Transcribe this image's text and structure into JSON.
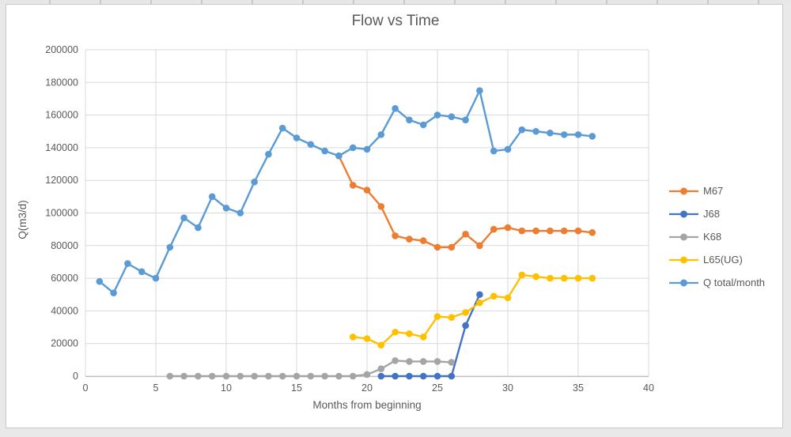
{
  "chart_data": {
    "type": "line",
    "title": "Flow vs Time",
    "xlabel": "Months from beginning",
    "ylabel": "Q(m3/d)",
    "xlim": [
      0,
      40
    ],
    "ylim": [
      0,
      200000
    ],
    "xticks": [
      0,
      5,
      10,
      15,
      20,
      25,
      30,
      35,
      40
    ],
    "yticks": [
      0,
      20000,
      40000,
      60000,
      80000,
      100000,
      120000,
      140000,
      160000,
      180000,
      200000
    ],
    "grid": "both",
    "legend_position": "right",
    "gridline_color": "#d9d9d9",
    "axis_line_color": "#bfbfbf",
    "text_color": "#595959",
    "series": [
      {
        "name": "M67",
        "color": "#ED7D31",
        "x": [
          18,
          19,
          20,
          21,
          22,
          23,
          24,
          25,
          26,
          27,
          28,
          29,
          30,
          31,
          32,
          33,
          34,
          35,
          36
        ],
        "y": [
          135000,
          117000,
          114000,
          104000,
          86000,
          84000,
          83000,
          79000,
          79000,
          87000,
          80000,
          90000,
          91000,
          89000,
          89000,
          89000,
          89000,
          89000,
          88000
        ]
      },
      {
        "name": "J68",
        "color": "#4472C4",
        "x": [
          21,
          22,
          23,
          24,
          25,
          26,
          27,
          28
        ],
        "y": [
          0,
          0,
          0,
          0,
          0,
          0,
          31000,
          50000
        ]
      },
      {
        "name": "K68",
        "color": "#A5A5A5",
        "x": [
          6,
          7,
          8,
          9,
          10,
          11,
          12,
          13,
          14,
          15,
          16,
          17,
          18,
          19,
          20,
          21,
          22,
          23,
          24,
          25,
          26
        ],
        "y": [
          0,
          0,
          0,
          0,
          0,
          0,
          0,
          0,
          0,
          0,
          0,
          0,
          0,
          0,
          1000,
          4500,
          9500,
          9000,
          9000,
          9000,
          8500
        ]
      },
      {
        "name": "L65(UG)",
        "color": "#FFC000",
        "x": [
          19,
          20,
          21,
          22,
          23,
          24,
          25,
          26,
          27,
          28,
          29,
          30,
          31,
          32,
          33,
          34,
          35,
          36
        ],
        "y": [
          24000,
          23000,
          19000,
          27000,
          26000,
          24000,
          36500,
          36000,
          39000,
          45000,
          49000,
          48000,
          62000,
          61000,
          60000,
          60000,
          60000,
          60000
        ]
      },
      {
        "name": "Q total/month",
        "color": "#5B9BD5",
        "x": [
          1,
          2,
          3,
          4,
          5,
          6,
          7,
          8,
          9,
          10,
          11,
          12,
          13,
          14,
          15,
          16,
          17,
          18,
          19,
          20,
          21,
          22,
          23,
          24,
          25,
          26,
          27,
          28,
          29,
          30,
          31,
          32,
          33,
          34,
          35,
          36
        ],
        "y": [
          58000,
          51000,
          69000,
          64000,
          60000,
          79000,
          97000,
          91000,
          110000,
          103000,
          100000,
          119000,
          136000,
          152000,
          146000,
          142000,
          138000,
          135000,
          140000,
          139000,
          148000,
          164000,
          157000,
          154000,
          160000,
          159000,
          157000,
          175000,
          138000,
          139000,
          151000,
          150000,
          149000,
          148000,
          148000,
          147000
        ]
      }
    ]
  }
}
